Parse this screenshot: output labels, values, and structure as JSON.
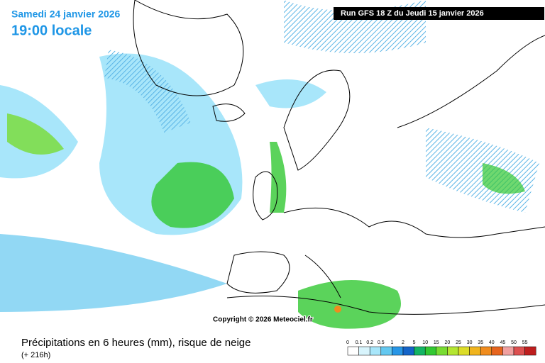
{
  "header": {
    "date": "Samedi 24 janvier 2026",
    "time": "19:00 locale",
    "run": "Run GFS 18 Z du Jeudi 15 janvier 2026"
  },
  "copyright": "Copyright © 2026 Meteociel.fr",
  "footer": {
    "title": "Précipitations en 6 heures (mm), risque de neige",
    "lead": "(+ 216h)"
  },
  "legend": {
    "items": [
      {
        "label": "0",
        "color": "#ffffff"
      },
      {
        "label": "0.1",
        "color": "#d8f4fc"
      },
      {
        "label": "0.2",
        "color": "#a8e6fa"
      },
      {
        "label": "0.5",
        "color": "#64c8f0"
      },
      {
        "label": "1",
        "color": "#2896e6"
      },
      {
        "label": "2",
        "color": "#1464c8"
      },
      {
        "label": "5",
        "color": "#14b464"
      },
      {
        "label": "10",
        "color": "#32c832"
      },
      {
        "label": "15",
        "color": "#78dc32"
      },
      {
        "label": "20",
        "color": "#b4e632"
      },
      {
        "label": "25",
        "color": "#dcdc28"
      },
      {
        "label": "30",
        "color": "#f0b41e"
      },
      {
        "label": "35",
        "color": "#f08c1e"
      },
      {
        "label": "40",
        "color": "#e6641e"
      },
      {
        "label": "45",
        "color": "#f0a0a0"
      },
      {
        "label": "50",
        "color": "#dc5050"
      },
      {
        "label": "55",
        "color": "#be1e1e"
      }
    ]
  }
}
